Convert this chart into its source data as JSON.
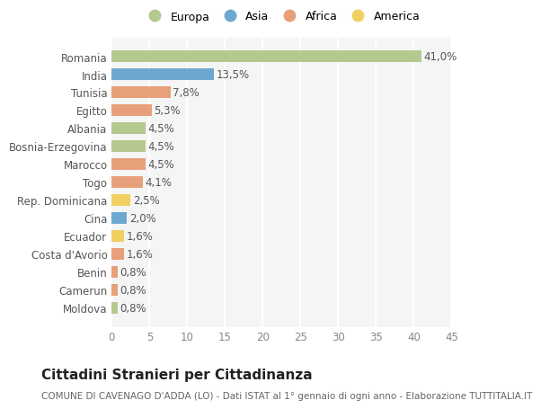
{
  "countries": [
    "Romania",
    "India",
    "Tunisia",
    "Egitto",
    "Albania",
    "Bosnia-Erzegovina",
    "Marocco",
    "Togo",
    "Rep. Dominicana",
    "Cina",
    "Ecuador",
    "Costa d'Avorio",
    "Benin",
    "Camerun",
    "Moldova"
  ],
  "values": [
    41.0,
    13.5,
    7.8,
    5.3,
    4.5,
    4.5,
    4.5,
    4.1,
    2.5,
    2.0,
    1.6,
    1.6,
    0.8,
    0.8,
    0.8
  ],
  "labels": [
    "41,0%",
    "13,5%",
    "7,8%",
    "5,3%",
    "4,5%",
    "4,5%",
    "4,5%",
    "4,1%",
    "2,5%",
    "2,0%",
    "1,6%",
    "1,6%",
    "0,8%",
    "0,8%",
    "0,8%"
  ],
  "continents": [
    "Europa",
    "Asia",
    "Africa",
    "Africa",
    "Europa",
    "Europa",
    "Africa",
    "Africa",
    "America",
    "Asia",
    "America",
    "Africa",
    "Africa",
    "Africa",
    "Europa"
  ],
  "continent_colors": {
    "Europa": "#b5c98e",
    "Asia": "#6ea8d0",
    "Africa": "#e8a07a",
    "America": "#f0d060"
  },
  "legend_order": [
    "Europa",
    "Asia",
    "Africa",
    "America"
  ],
  "title": "Cittadini Stranieri per Cittadinanza",
  "subtitle": "COMUNE DI CAVENAGO D'ADDA (LO) - Dati ISTAT al 1° gennaio di ogni anno - Elaborazione TUTTITALIA.IT",
  "xlim": [
    0,
    45
  ],
  "xticks": [
    0,
    5,
    10,
    15,
    20,
    25,
    30,
    35,
    40,
    45
  ],
  "bg_color": "#ffffff",
  "plot_bg_color": "#f5f5f5",
  "grid_color": "#ffffff",
  "bar_height": 0.65,
  "label_fontsize": 8.5,
  "tick_fontsize": 8.5,
  "title_fontsize": 11,
  "subtitle_fontsize": 7.5
}
